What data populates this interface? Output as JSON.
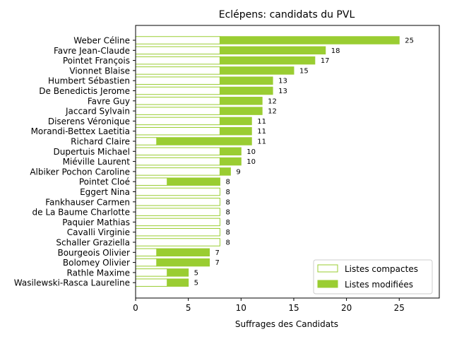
{
  "chart_data": {
    "type": "bar",
    "orientation": "horizontal",
    "stacked": true,
    "title": "Eclépens: candidats du PVL",
    "xlabel": "Suffrages des Candidats",
    "ylabel": "",
    "xlim": [
      0,
      28.8
    ],
    "xticks": [
      0,
      5,
      10,
      15,
      20,
      25
    ],
    "grid": false,
    "legend_position": "lower-right",
    "colors": {
      "compact_edge": "#9acd32",
      "compact_fill": "#ffffff",
      "modified_fill": "#9acd32"
    },
    "categories": [
      "Weber Céline",
      "Favre Jean-Claude",
      "Pointet François",
      "Vionnet Blaise",
      "Humbert Sébastien",
      "De Benedictis Jerome",
      "Favre Guy",
      "Jaccard Sylvain",
      "Diserens Véronique",
      "Morandi-Bettex Laetitia",
      "Richard Claire",
      "Dupertuis Michael",
      "Miéville Laurent",
      "Albiker Pochon Caroline",
      "Pointet Cloé",
      "Eggert Nina",
      "Fankhauser Carmen",
      "de La Baume Charlotte",
      "Paquier Mathias",
      "Cavalli Virginie",
      "Schaller Graziella",
      "Bourgeois Olivier",
      "Bolomey Olivier",
      "Rathle Maxime",
      "Wasilewski-Rasca Laureline"
    ],
    "series": [
      {
        "name": "Listes compactes",
        "values": [
          8,
          8,
          8,
          8,
          8,
          8,
          8,
          8,
          8,
          8,
          2,
          8,
          8,
          8,
          3,
          8,
          8,
          8,
          8,
          8,
          8,
          2,
          2,
          3,
          3
        ]
      },
      {
        "name": "Listes modifiées",
        "values": [
          17,
          10,
          9,
          7,
          5,
          5,
          4,
          4,
          3,
          3,
          9,
          2,
          2,
          1,
          5,
          0,
          0,
          0,
          0,
          0,
          0,
          5,
          5,
          2,
          2
        ]
      }
    ],
    "totals": [
      "25",
      "18",
      "17",
      "15",
      "13",
      "13",
      "12",
      "12",
      "11",
      "11",
      "11",
      "10",
      "10",
      "9",
      "8",
      "8",
      "8",
      "8",
      "8",
      "8",
      "8",
      "7",
      "7",
      "5",
      "5"
    ]
  }
}
